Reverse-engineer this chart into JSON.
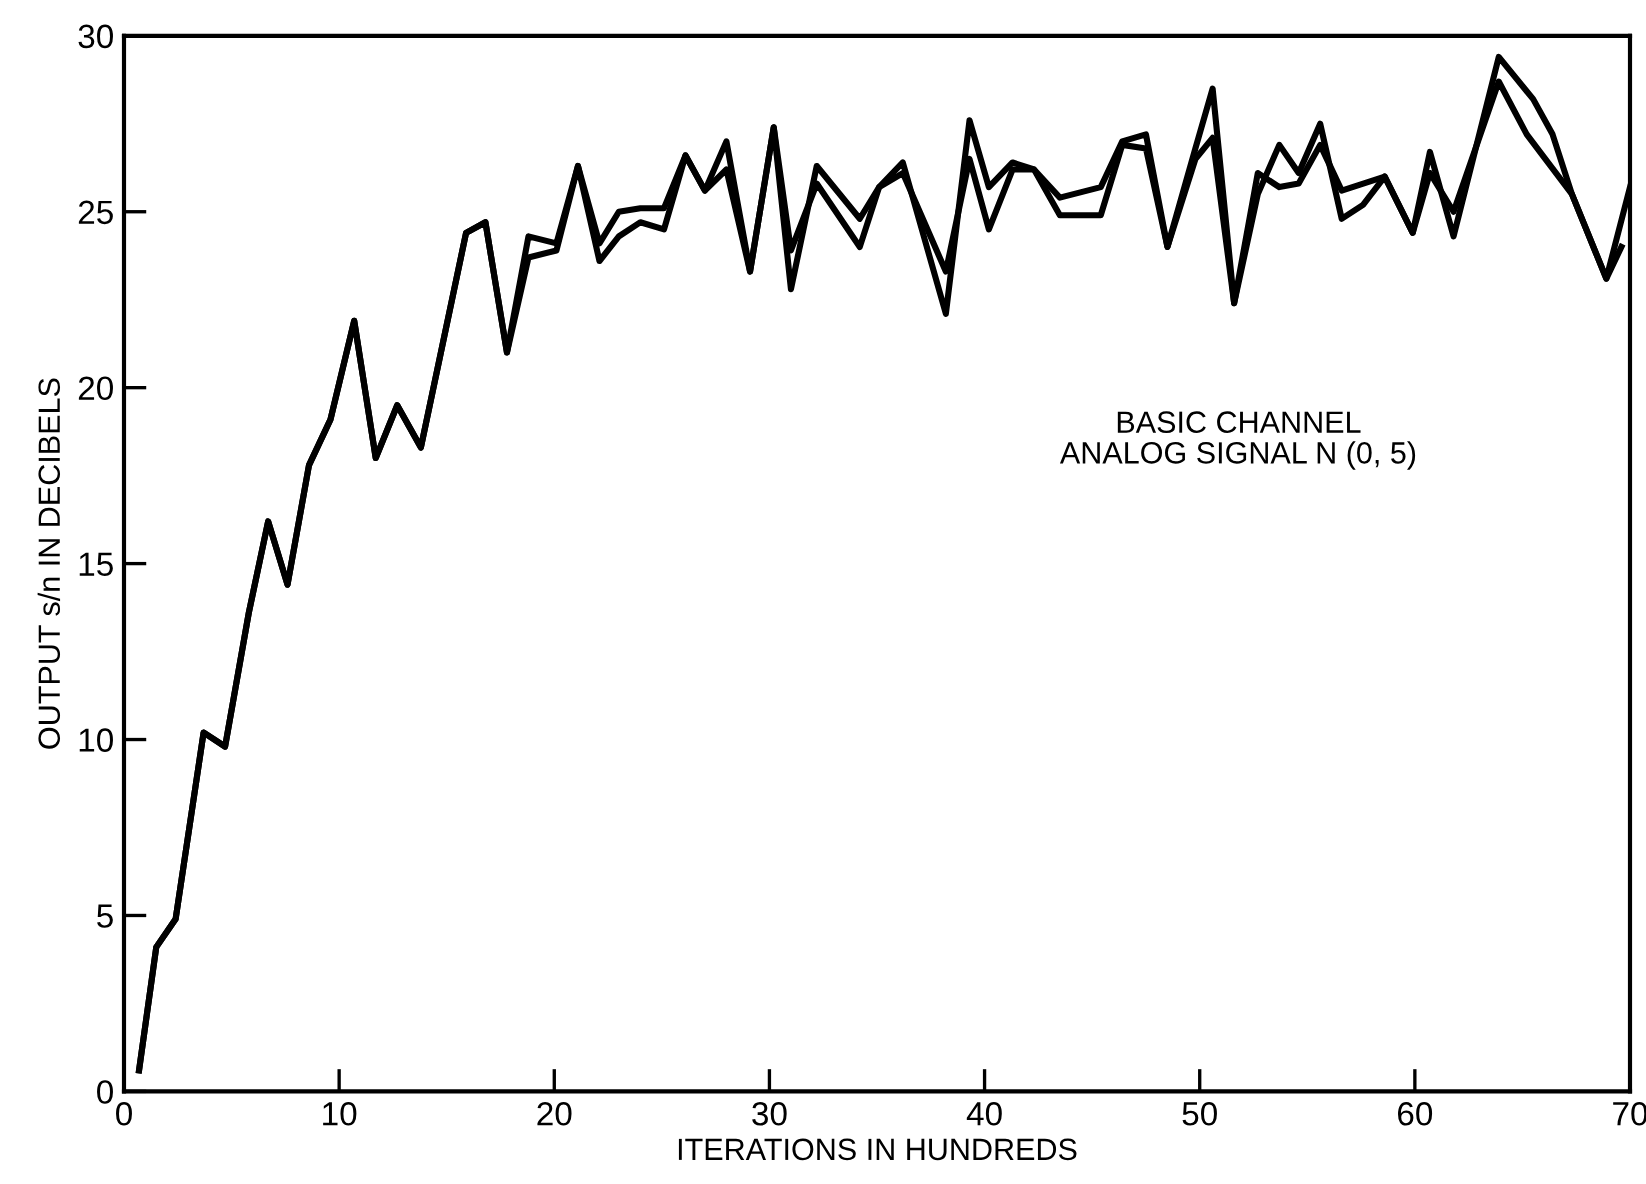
{
  "chart_data": {
    "type": "line",
    "xlabel": "ITERATIONS IN HUNDREDS",
    "ylabel": "OUTPUT s/n IN DECIBELS",
    "annotations": [
      "BASIC CHANNEL\nANALOG SIGNAL N (0, 5)"
    ],
    "xlim": [
      0,
      70
    ],
    "ylim": [
      0,
      30
    ],
    "xticks": [
      0,
      10,
      20,
      30,
      40,
      50,
      60,
      70
    ],
    "yticks": [
      0,
      5,
      10,
      15,
      20,
      25,
      30
    ],
    "grid": false,
    "legend": false,
    "marker": "none",
    "line_style": "solid",
    "series": [
      {
        "color": "#000000",
        "x": [
          0.7,
          1.5,
          2.4,
          3.7,
          4.7,
          5.8,
          6.7,
          7.6,
          8.6,
          9.6,
          10.7,
          11.7,
          12.7,
          13.8,
          15.9,
          16.8,
          17.8,
          18.8,
          20.1,
          21.1,
          22.1,
          23.0,
          24.0,
          25.1,
          26.1,
          27.0,
          28.0,
          29.1,
          30.2,
          31.0,
          32.2,
          34.2,
          35.1,
          36.2,
          38.2,
          39.3,
          40.2,
          41.3,
          42.3,
          43.5,
          45.4,
          46.4,
          47.5,
          48.5,
          49.8,
          50.6,
          51.6,
          52.7,
          53.7,
          54.6,
          55.6,
          56.6,
          57.6,
          58.6,
          59.9,
          60.7,
          61.8,
          63.9,
          65.5,
          66.4,
          67.3,
          68.9,
          70.0
        ],
        "values": [
          0.6,
          4.1,
          4.9,
          10.2,
          9.8,
          13.6,
          16.2,
          14.4,
          17.8,
          19.1,
          21.9,
          18.0,
          19.5,
          18.3,
          24.4,
          24.7,
          21.0,
          24.3,
          24.1,
          26.3,
          24.1,
          25.0,
          25.1,
          25.1,
          26.6,
          25.6,
          27.0,
          23.3,
          27.4,
          22.8,
          26.3,
          24.8,
          25.7,
          26.4,
          22.1,
          27.6,
          25.7,
          26.4,
          26.2,
          25.4,
          25.7,
          27.0,
          27.2,
          24.0,
          26.8,
          28.5,
          22.4,
          25.5,
          26.9,
          26.1,
          27.5,
          24.8,
          25.2,
          26.0,
          24.4,
          26.7,
          24.3,
          29.4,
          28.2,
          27.2,
          25.5,
          23.1,
          25.7
        ]
      },
      {
        "color": "#000000",
        "x": [
          0.7,
          1.5,
          2.4,
          3.7,
          4.7,
          5.8,
          6.7,
          7.6,
          8.6,
          9.6,
          10.7,
          11.7,
          12.7,
          13.8,
          15.9,
          16.8,
          17.8,
          18.8,
          20.1,
          21.1,
          22.1,
          23.0,
          24.0,
          25.1,
          26.1,
          27.0,
          28.0,
          29.1,
          30.2,
          31.0,
          32.2,
          34.2,
          35.1,
          36.2,
          38.2,
          39.3,
          40.2,
          41.3,
          42.3,
          43.5,
          45.4,
          46.4,
          47.5,
          48.5,
          49.8,
          50.6,
          51.6,
          52.7,
          53.7,
          54.6,
          55.6,
          56.6,
          57.6,
          58.6,
          59.9,
          60.7,
          61.8,
          63.9,
          65.2,
          67.3,
          68.9,
          69.6
        ],
        "values": [
          0.6,
          4.1,
          4.9,
          10.2,
          9.8,
          13.6,
          16.2,
          14.4,
          17.8,
          19.1,
          21.9,
          18.0,
          19.5,
          18.3,
          24.4,
          24.7,
          21.0,
          23.7,
          23.9,
          26.3,
          23.6,
          24.3,
          24.7,
          24.5,
          26.6,
          25.6,
          26.2,
          23.3,
          27.4,
          23.9,
          25.8,
          24.0,
          25.7,
          26.1,
          23.3,
          26.5,
          24.5,
          26.2,
          26.2,
          24.9,
          24.9,
          26.9,
          26.8,
          24.0,
          26.5,
          27.1,
          22.4,
          26.1,
          25.7,
          25.8,
          26.9,
          25.6,
          25.8,
          26.0,
          24.4,
          26.1,
          25.0,
          28.7,
          27.2,
          25.5,
          23.1,
          24.0
        ]
      }
    ]
  }
}
